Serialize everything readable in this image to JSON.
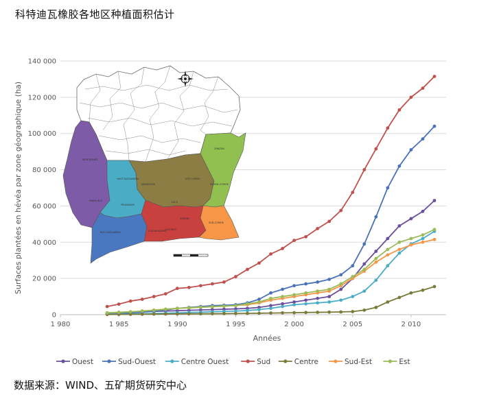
{
  "header": {
    "title": "科特迪瓦橡胶各地区种植面积估计"
  },
  "footer": {
    "source": "数据来源：WIND、五矿期货研究中心"
  },
  "colors": {
    "Ouest": "#6a4f9c",
    "Sud-Ouest": "#4a72b8",
    "Centre Ouest": "#4bacc6",
    "Sud": "#c0504d",
    "Centre": "#7a7a3a",
    "Sud-Est": "#f79646",
    "Est": "#9bbb59",
    "grid": "#d9d9d9",
    "map_north": "#ffffff",
    "map_outline": "#666666"
  },
  "chart_data": {
    "type": "line",
    "title": "",
    "xlabel": "Années",
    "ylabel": "Surfaces plantées en hévéa par zone géographique (ha)",
    "xlim": [
      1980,
      2013
    ],
    "ylim": [
      0,
      140000
    ],
    "x_ticks": [
      "1 980",
      "1 985",
      "1 990",
      "1 995",
      "2 000",
      "2 005",
      "2 010"
    ],
    "x_tick_values": [
      1980,
      1985,
      1990,
      1995,
      2000,
      2005,
      2010
    ],
    "y_ticks": [
      "0",
      "20 000",
      "40 000",
      "60 000",
      "80 000",
      "100 000",
      "120 000",
      "140 000"
    ],
    "y_tick_values": [
      0,
      20000,
      40000,
      60000,
      80000,
      100000,
      120000,
      140000
    ],
    "grid": "horizontal",
    "legend_position": "bottom",
    "x": [
      1984,
      1985,
      1986,
      1987,
      1988,
      1989,
      1990,
      1991,
      1992,
      1993,
      1994,
      1995,
      1996,
      1997,
      1998,
      1999,
      2000,
      2001,
      2002,
      2003,
      2004,
      2005,
      2006,
      2007,
      2008,
      2009,
      2010,
      2011,
      2012
    ],
    "series": [
      {
        "name": "Ouest",
        "values": [
          1000,
          1200,
          1400,
          1600,
          1800,
          2000,
          2200,
          2400,
          2600,
          2800,
          3000,
          3200,
          3500,
          4000,
          5000,
          6000,
          7000,
          8000,
          9000,
          10000,
          14000,
          20000,
          28000,
          35000,
          42000,
          49000,
          53000,
          57000,
          63000
        ]
      },
      {
        "name": "Sud-Ouest",
        "values": [
          500,
          700,
          1000,
          1400,
          1800,
          2500,
          3500,
          4000,
          4500,
          5000,
          5200,
          5500,
          6500,
          8500,
          12000,
          14000,
          16000,
          17000,
          18000,
          19500,
          22000,
          27000,
          39000,
          54000,
          70000,
          82000,
          91000,
          97000,
          104000
        ]
      },
      {
        "name": "Centre Ouest",
        "values": [
          200,
          300,
          400,
          500,
          600,
          800,
          1000,
          1200,
          1400,
          1600,
          1800,
          2000,
          2300,
          2800,
          3500,
          4500,
          5500,
          6000,
          6500,
          7000,
          8000,
          10000,
          13000,
          19000,
          27000,
          34000,
          39000,
          42000,
          46000
        ]
      },
      {
        "name": "Sud",
        "values": [
          4500,
          5800,
          7500,
          8500,
          10000,
          11500,
          14500,
          15000,
          16000,
          17000,
          18000,
          21000,
          25000,
          28500,
          33500,
          36500,
          41000,
          43000,
          47500,
          51500,
          57500,
          67500,
          80000,
          91500,
          103000,
          113000,
          120000,
          125000,
          131500
        ]
      },
      {
        "name": "Centre",
        "values": [
          100,
          150,
          200,
          250,
          300,
          350,
          400,
          450,
          500,
          550,
          600,
          650,
          700,
          800,
          900,
          1000,
          1100,
          1200,
          1300,
          1400,
          1500,
          1700,
          2500,
          4000,
          7000,
          9500,
          12000,
          13500,
          15500
        ]
      },
      {
        "name": "Sud-Est",
        "values": [
          1000,
          1300,
          1600,
          2000,
          2500,
          3000,
          3500,
          3800,
          4100,
          4400,
          4700,
          5000,
          5500,
          6500,
          8000,
          9000,
          10000,
          11000,
          12000,
          13000,
          16000,
          20000,
          24000,
          29000,
          33000,
          36000,
          38500,
          40000,
          41500
        ]
      },
      {
        "name": "Est",
        "values": [
          1000,
          1300,
          1600,
          2000,
          2500,
          3000,
          3500,
          3800,
          4100,
          4400,
          4700,
          5000,
          6000,
          7000,
          9000,
          10000,
          11000,
          12000,
          13000,
          14000,
          17000,
          21000,
          25000,
          31000,
          36000,
          40000,
          42000,
          44000,
          47000
        ]
      }
    ]
  },
  "map": {
    "region_labels": [
      "MONTAGNES",
      "HAUT-SASSANDRA",
      "MARAHOUE",
      "ZANZAN",
      "DENGUELE",
      "BAS-SASSANDRA",
      "LAGUNES",
      "SUD-COMOE",
      "AGNEBY",
      "SUD-BANDAMA",
      "FROMAGER",
      "LACS",
      "N'ZI-COMOE",
      "MOYEN-COMOE"
    ]
  }
}
